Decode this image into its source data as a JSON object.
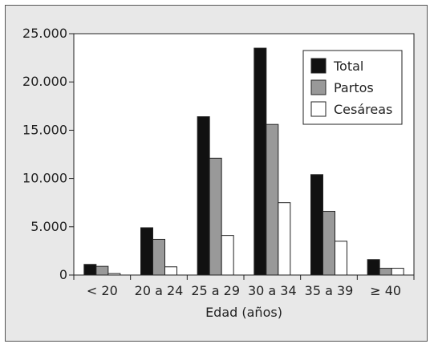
{
  "chart_data": {
    "type": "bar",
    "title": "",
    "xlabel": "Edad (años)",
    "ylabel": "",
    "categories": [
      "< 20",
      "20 a 24",
      "25 a 29",
      "30 a 34",
      "35 a 39",
      "≥ 40"
    ],
    "ylim": [
      0,
      25000
    ],
    "yticks": [
      0,
      5000,
      10000,
      15000,
      20000,
      25000
    ],
    "ytick_labels": [
      "0",
      "5.000",
      "10.000",
      "15.000",
      "20.000",
      "25.000"
    ],
    "grid": false,
    "legend_position": "top-right",
    "series": [
      {
        "name": "Total",
        "color": "#111111",
        "values": [
          1100,
          4900,
          16400,
          23500,
          10400,
          1600
        ]
      },
      {
        "name": "Partos",
        "color": "#999999",
        "values": [
          900,
          3700,
          12100,
          15600,
          6600,
          700
        ]
      },
      {
        "name": "Cesáreas",
        "color": "#ffffff",
        "values": [
          150,
          850,
          4100,
          7500,
          3500,
          700
        ]
      }
    ]
  }
}
